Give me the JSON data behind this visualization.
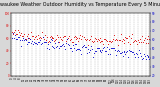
{
  "title": "Milwaukee Weather Outdoor Humidity vs Temperature Every 5 Minutes",
  "title_fontsize": 3.5,
  "bg_color": "#d8d8d8",
  "plot_bg_color": "#ffffff",
  "grid_color": "#b0b0b0",
  "left_color": "#dd0000",
  "right_color": "#0000cc",
  "left_ylim": [
    0,
    100
  ],
  "right_ylim": [
    20,
    90
  ],
  "n_points": 144,
  "humidity_seed": 42,
  "temp_seed": 99
}
